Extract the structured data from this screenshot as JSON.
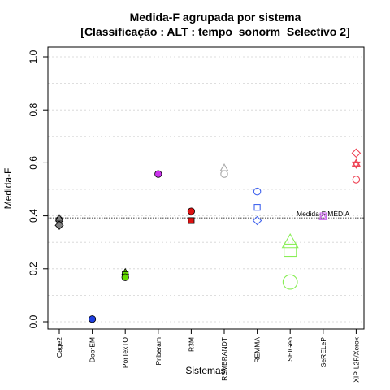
{
  "chart_data": {
    "type": "scatter",
    "title": "Medida-F agrupada por sistema",
    "subtitle": "[Classificação : ALT : tempo_sonorm_Selectivo 2]",
    "xlabel": "Sistemas",
    "ylabel": "Medida-F",
    "ylim": [
      0,
      1
    ],
    "y_ticks": [
      "0.0",
      "0.2",
      "0.4",
      "0.6",
      "0.8",
      "1.0"
    ],
    "grid": true,
    "categories": [
      "Cage2",
      "DobrEM",
      "PorTexTO",
      "Priberam",
      "R3M",
      "REMBRANDT",
      "REMMA",
      "SEIGeo",
      "SeRELeP",
      "XIP-L2F/Xerox"
    ],
    "reference_line": {
      "label": "Medida-F MÉDIA",
      "value": 0.392
    },
    "series": [
      {
        "category": "Cage2",
        "color": "#808080",
        "points": [
          {
            "shape": "circle",
            "value": 0.385,
            "filled": true
          },
          {
            "shape": "triangle",
            "value": 0.39,
            "filled": true
          },
          {
            "shape": "diamond",
            "value": 0.364,
            "filled": true
          }
        ]
      },
      {
        "category": "DobrEM",
        "color": "#1f3fe0",
        "points": [
          {
            "shape": "circle",
            "value": 0.01,
            "filled": true
          }
        ]
      },
      {
        "category": "PorTexTO",
        "color": "#66dd00",
        "points": [
          {
            "shape": "triangle",
            "value": 0.186,
            "filled": true
          },
          {
            "shape": "square",
            "value": 0.178,
            "filled": true
          },
          {
            "shape": "circle",
            "value": 0.168,
            "filled": true
          }
        ]
      },
      {
        "category": "Priberam",
        "color": "#cc33ee",
        "points": [
          {
            "shape": "circle",
            "value": 0.558,
            "filled": true
          }
        ]
      },
      {
        "category": "R3M",
        "color": "#dd1111",
        "points": [
          {
            "shape": "circle",
            "value": 0.417,
            "filled": true
          },
          {
            "shape": "square",
            "value": 0.382,
            "filled": true
          }
        ]
      },
      {
        "category": "REMBRANDT",
        "color": "#aaaaaa",
        "points": [
          {
            "shape": "triangle",
            "value": 0.58,
            "filled": false
          },
          {
            "shape": "circle",
            "value": 0.558,
            "filled": false
          }
        ]
      },
      {
        "category": "REMMA",
        "color": "#4466ee",
        "points": [
          {
            "shape": "circle",
            "value": 0.492,
            "filled": false
          },
          {
            "shape": "square",
            "value": 0.432,
            "filled": false
          },
          {
            "shape": "diamond",
            "value": 0.382,
            "filled": false
          }
        ]
      },
      {
        "category": "SEIGeo",
        "color": "#88ee55",
        "points": [
          {
            "shape": "triangle",
            "value": 0.3,
            "filled": false,
            "size": "large"
          },
          {
            "shape": "square",
            "value": 0.27,
            "filled": false,
            "size": "large"
          },
          {
            "shape": "circle",
            "value": 0.15,
            "filled": false,
            "size": "large"
          }
        ]
      },
      {
        "category": "SeRELeP",
        "color": "#cc66ee",
        "points": [
          {
            "shape": "square",
            "value": 0.4,
            "filled": false
          },
          {
            "shape": "triangle",
            "value": 0.395,
            "filled": false
          }
        ]
      },
      {
        "category": "XIP-L2F/Xerox",
        "color": "#ee4455",
        "points": [
          {
            "shape": "diamond",
            "value": 0.637,
            "filled": false
          },
          {
            "shape": "star",
            "value": 0.595,
            "filled": false
          },
          {
            "shape": "triangle",
            "value": 0.598,
            "filled": false
          },
          {
            "shape": "circle",
            "value": 0.537,
            "filled": false
          }
        ]
      }
    ]
  }
}
